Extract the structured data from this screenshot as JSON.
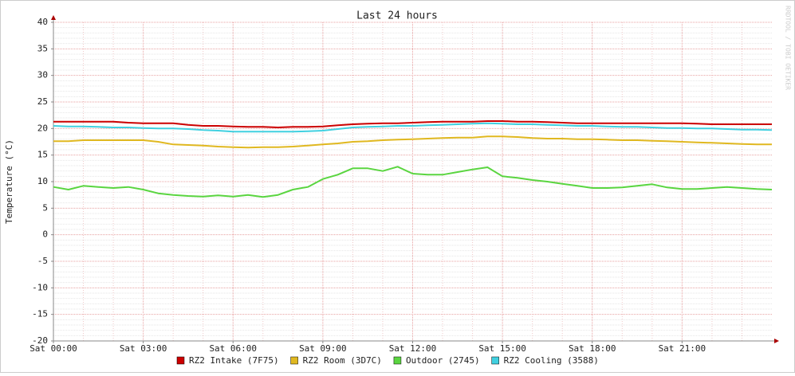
{
  "chart_data": {
    "type": "line",
    "title": "Last 24 hours",
    "ylabel": "Temperature (°C)",
    "watermark": "RRDTOOL / TOBI OETIKER",
    "x": [
      0,
      0.5,
      1,
      1.5,
      2,
      2.5,
      3,
      3.5,
      4,
      4.5,
      5,
      5.5,
      6,
      6.5,
      7,
      7.5,
      8,
      8.5,
      9,
      9.5,
      10,
      10.5,
      11,
      11.5,
      12,
      12.5,
      13,
      13.5,
      14,
      14.5,
      15,
      15.5,
      16,
      16.5,
      17,
      17.5,
      18,
      18.5,
      19,
      19.5,
      20,
      20.5,
      21,
      21.5,
      22,
      22.5,
      23,
      23.5,
      24
    ],
    "xlim": [
      0,
      24
    ],
    "xticks": [
      {
        "value": 0,
        "label": "Sat 00:00"
      },
      {
        "value": 3,
        "label": "Sat 03:00"
      },
      {
        "value": 6,
        "label": "Sat 06:00"
      },
      {
        "value": 9,
        "label": "Sat 09:00"
      },
      {
        "value": 12,
        "label": "Sat 12:00"
      },
      {
        "value": 15,
        "label": "Sat 15:00"
      },
      {
        "value": 18,
        "label": "Sat 18:00"
      },
      {
        "value": 21,
        "label": "Sat 21:00"
      }
    ],
    "ylim": [
      -20,
      40
    ],
    "yticks": [
      -20,
      -15,
      -10,
      -5,
      0,
      5,
      10,
      15,
      20,
      25,
      30,
      35,
      40
    ],
    "grid": true,
    "series": [
      {
        "name": "RZ2 Intake (7F75)",
        "color": "#cc0000",
        "values": [
          21.3,
          21.3,
          21.3,
          21.3,
          21.3,
          21.1,
          21,
          21,
          21,
          20.7,
          20.5,
          20.5,
          20.4,
          20.3,
          20.3,
          20.2,
          20.3,
          20.3,
          20.4,
          20.6,
          20.8,
          20.9,
          21,
          21,
          21.1,
          21.2,
          21.3,
          21.3,
          21.3,
          21.4,
          21.4,
          21.3,
          21.3,
          21.2,
          21.1,
          21,
          21,
          21,
          21,
          21,
          21,
          21,
          21,
          20.9,
          20.8,
          20.8,
          20.8,
          20.8,
          20.8
        ]
      },
      {
        "name": "RZ2 Room (3D7C)",
        "color": "#e0b820",
        "values": [
          17.6,
          17.6,
          17.8,
          17.8,
          17.8,
          17.8,
          17.8,
          17.5,
          17,
          16.9,
          16.8,
          16.6,
          16.5,
          16.4,
          16.5,
          16.5,
          16.6,
          16.8,
          17,
          17.2,
          17.5,
          17.6,
          17.8,
          17.9,
          18,
          18.1,
          18.2,
          18.3,
          18.3,
          18.5,
          18.5,
          18.4,
          18.2,
          18.1,
          18.1,
          18,
          18,
          17.9,
          17.8,
          17.8,
          17.7,
          17.6,
          17.5,
          17.4,
          17.3,
          17.2,
          17.1,
          17,
          17
        ]
      },
      {
        "name": "Outdoor (2745)",
        "color": "#5ad540",
        "values": [
          9,
          8.5,
          9.2,
          9,
          8.8,
          9,
          8.5,
          7.8,
          7.5,
          7.3,
          7.2,
          7.4,
          7.2,
          7.5,
          7.1,
          7.5,
          8.5,
          9,
          10.5,
          11.3,
          12.5,
          12.5,
          12,
          12.8,
          11.5,
          11.3,
          11.3,
          11.8,
          12.3,
          12.7,
          11,
          10.7,
          10.3,
          10,
          9.6,
          9.2,
          8.8,
          8.8,
          8.9,
          9.2,
          9.5,
          8.9,
          8.6,
          8.6,
          8.8,
          9,
          8.8,
          8.6,
          8.5
        ]
      },
      {
        "name": "RZ2 Cooling (3588)",
        "color": "#40d0e0",
        "values": [
          20.5,
          20.4,
          20.4,
          20.3,
          20.2,
          20.2,
          20.1,
          20,
          20,
          19.9,
          19.7,
          19.6,
          19.4,
          19.4,
          19.4,
          19.4,
          19.4,
          19.5,
          19.6,
          19.9,
          20.2,
          20.3,
          20.4,
          20.5,
          20.5,
          20.6,
          20.7,
          20.8,
          20.9,
          21,
          20.9,
          20.8,
          20.8,
          20.7,
          20.6,
          20.5,
          20.5,
          20.4,
          20.3,
          20.3,
          20.2,
          20.1,
          20.1,
          20,
          20,
          19.9,
          19.8,
          19.8,
          19.7
        ]
      }
    ]
  }
}
